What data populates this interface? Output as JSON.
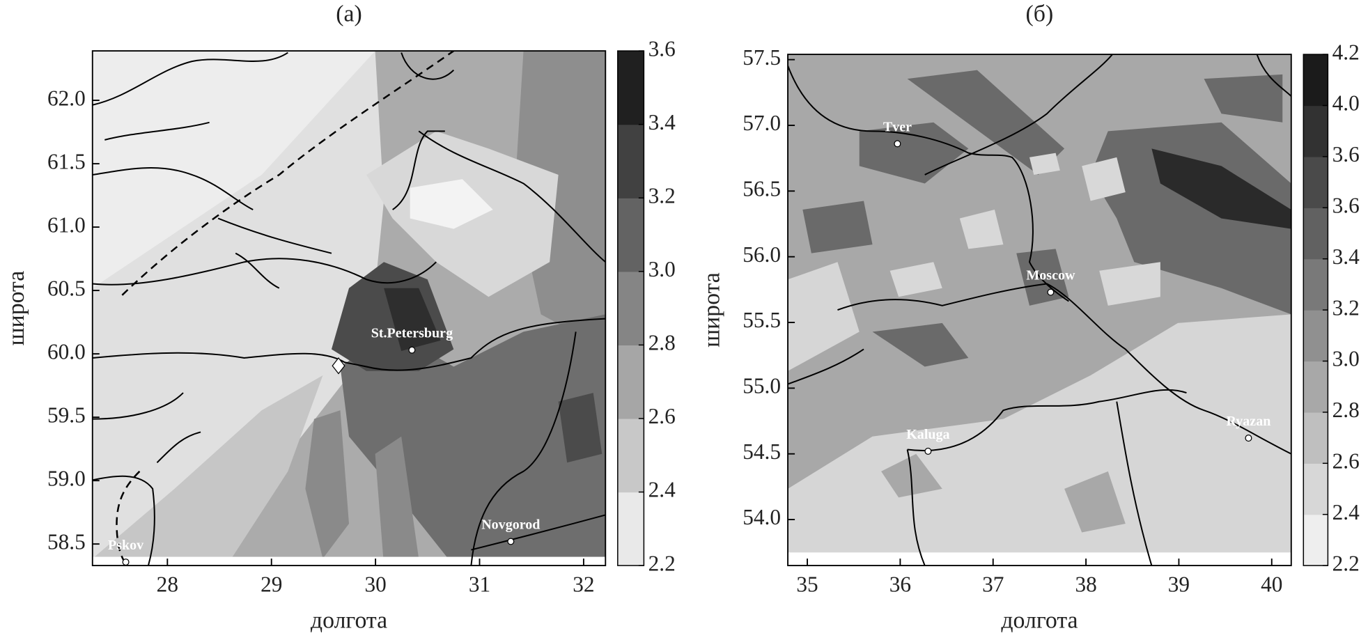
{
  "chart_data": [
    {
      "type": "map",
      "title": "(a)",
      "xlabel": "долгота",
      "ylabel": "широта",
      "xlim": [
        27.28,
        32.21
      ],
      "ylim": [
        58.33,
        62.39
      ],
      "xticks": [
        28,
        29,
        30,
        31,
        32
      ],
      "yticks": [
        {
          "value": 58.5,
          "label": "58.5"
        },
        {
          "value": 59,
          "label": "59.0"
        },
        {
          "value": 59.5,
          "label": "59.5"
        },
        {
          "value": 60,
          "label": "60.0"
        },
        {
          "value": 60.5,
          "label": "60.5"
        },
        {
          "value": 61,
          "label": "61.0"
        },
        {
          "value": 61.5,
          "label": "61.5"
        },
        {
          "value": 62,
          "label": "62.0"
        }
      ],
      "colorbar_levels": [
        2.2,
        2.4,
        2.6,
        2.8,
        {
          "value": 3,
          "label": "3.0"
        },
        3.2,
        3.4,
        3.6
      ],
      "cities": [
        {
          "name": "St.Petersburg",
          "lon": 30.35,
          "lat": 60.03
        },
        {
          "name": "Novgorod",
          "lon": 31.3,
          "lat": 58.52
        },
        {
          "name": "Pskov",
          "lon": 27.6,
          "lat": 58.33
        }
      ]
    },
    {
      "type": "map",
      "title": "(б)",
      "xlabel": "долгота",
      "ylabel": "широта",
      "xlim": [
        34.79,
        40.21
      ],
      "ylim": [
        53.65,
        57.54
      ],
      "xticks": [
        35,
        36,
        37,
        38,
        39,
        40
      ],
      "yticks": [
        {
          "value": 54,
          "label": "54.0"
        },
        {
          "value": 54.5,
          "label": "54.5"
        },
        {
          "value": 55,
          "label": "55.0"
        },
        {
          "value": 55.5,
          "label": "55.5"
        },
        {
          "value": 56,
          "label": "56.0"
        },
        {
          "value": 56.5,
          "label": "56.5"
        },
        {
          "value": 57,
          "label": "57.0"
        },
        {
          "value": 57.5,
          "label": "57.5"
        }
      ],
      "colorbar_levels": [
        2.2,
        2.4,
        2.6,
        2.8,
        {
          "value": 3,
          "label": "3.0"
        },
        3.2,
        3.4,
        3.6,
        3.6,
        {
          "value": 4,
          "label": "4.0"
        },
        4.2
      ],
      "cities": [
        {
          "name": "Tver",
          "lon": 35.97,
          "lat": 56.86
        },
        {
          "name": "Moscow",
          "lon": 37.62,
          "lat": 55.73
        },
        {
          "name": "Kaluga",
          "lon": 36.3,
          "lat": 54.52
        },
        {
          "name": "Ryazan",
          "lon": 39.75,
          "lat": 54.62
        }
      ]
    }
  ]
}
